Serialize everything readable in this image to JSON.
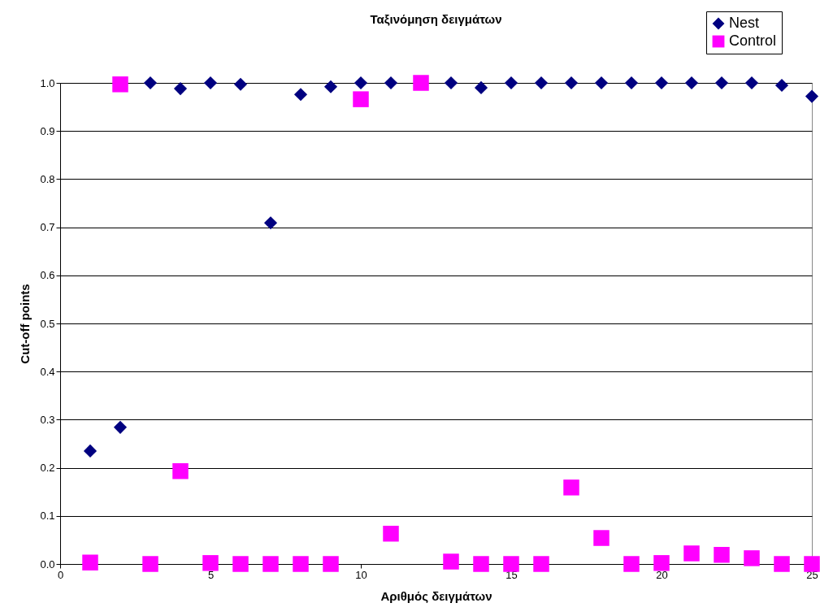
{
  "chart_data": {
    "type": "scatter",
    "title": "Ταξινόμηση δειγμάτων",
    "xlabel": "Αριθμός δειγμάτων",
    "ylabel": "Cut-off points",
    "x": [
      1,
      2,
      3,
      4,
      5,
      6,
      7,
      8,
      9,
      10,
      11,
      12,
      13,
      14,
      15,
      16,
      17,
      18,
      19,
      20,
      21,
      22,
      23,
      24,
      25
    ],
    "series": [
      {
        "name": "Nest",
        "color": "#000080",
        "marker": "diamond",
        "values": [
          0.235,
          0.284,
          1.0,
          0.988,
          1.0,
          0.997,
          0.709,
          0.976,
          0.992,
          1.0,
          1.0,
          null,
          1.0,
          0.99,
          1.0,
          1.0,
          1.0,
          1.0,
          1.0,
          1.0,
          1.0,
          1.0,
          1.0,
          0.995,
          0.972
        ]
      },
      {
        "name": "Control",
        "color": "#ff00ff",
        "marker": "square",
        "values": [
          0.003,
          0.997,
          0.0,
          0.193,
          0.002,
          0.0,
          0.0,
          0.0,
          0.0,
          0.966,
          0.063,
          1.0,
          0.005,
          0.0,
          0.0,
          0.0,
          0.159,
          0.054,
          0.0,
          0.002,
          0.022,
          0.019,
          0.012,
          0.0,
          0.0
        ]
      }
    ],
    "xlim": [
      0,
      25
    ],
    "xticks": [
      0,
      5,
      10,
      15,
      20,
      25
    ],
    "ylim": [
      0,
      1.0
    ],
    "yticks": [
      {
        "value": 0,
        "label": "0.0"
      },
      {
        "value": 0.1,
        "label": "0.1"
      },
      {
        "value": 0.2,
        "label": "0.2"
      },
      {
        "value": 0.3,
        "label": "0.3"
      },
      {
        "value": 0.4,
        "label": "0.4"
      },
      {
        "value": 0.5,
        "label": "0.5"
      },
      {
        "value": 0.6,
        "label": "0.6"
      },
      {
        "value": 0.7,
        "label": "0.7"
      },
      {
        "value": 0.8,
        "label": "0.8"
      },
      {
        "value": 0.9,
        "label": "0.9"
      },
      {
        "value": 1,
        "label": "1.0"
      }
    ],
    "grid": "y",
    "legend": "top right"
  }
}
